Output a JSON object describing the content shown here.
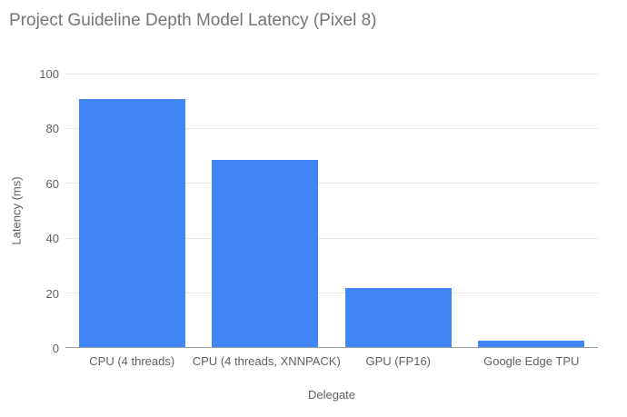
{
  "chart_data": {
    "type": "bar",
    "title": "Project Guideline Depth Model Latency (Pixel 8)",
    "xlabel": "Delegate",
    "ylabel": "Latency (ms)",
    "categories": [
      "CPU (4 threads)",
      "CPU (4 threads, XNNPACK)",
      "GPU (FP16)",
      "Google Edge TPU"
    ],
    "values": [
      90.4,
      68.2,
      21.5,
      2.4
    ],
    "ylim": [
      0,
      100
    ],
    "yticks": [
      0,
      20,
      40,
      60,
      80,
      100
    ],
    "grid": true,
    "legend": "none",
    "colors": {
      "bar": "#4285f4",
      "title": "#757575",
      "tick_label": "#616161",
      "axis_title": "#616161",
      "gridline": "#e8e8e8",
      "baseline": "#9e9e9e",
      "background": "#ffffff"
    }
  }
}
